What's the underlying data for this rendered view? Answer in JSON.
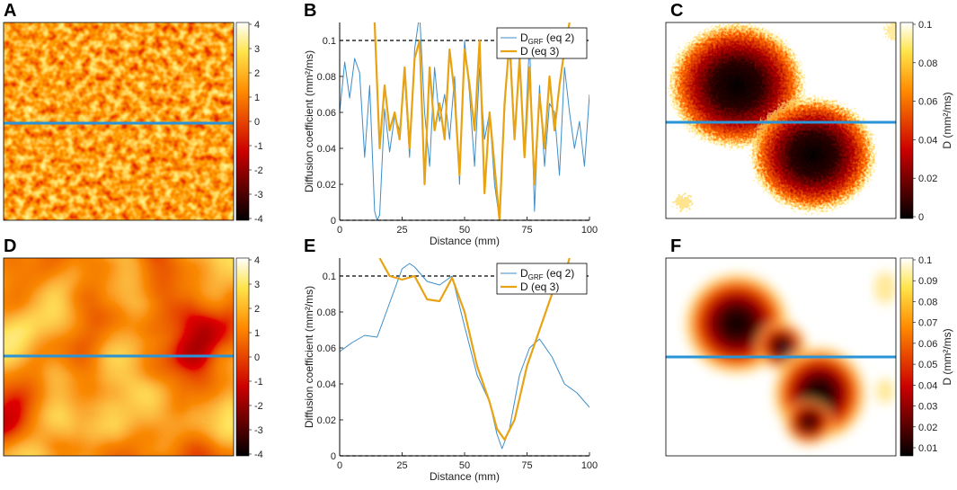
{
  "colors": {
    "blue_line": "#2a94d6",
    "curve_grf": "#3d8ec9",
    "curve_d": "#e8a314",
    "axis": "#000000"
  },
  "panels": {
    "A": {
      "letter": "A",
      "colorbar_ticks": [
        "4",
        "3",
        "2",
        "1",
        "0",
        "-1",
        "-2",
        "-3",
        "-4"
      ]
    },
    "C": {
      "letter": "C",
      "colorbar_ticks": [
        "0.1",
        "0.08",
        "0.06",
        "0.04",
        "0.02",
        "0"
      ],
      "colorbar_label": "D (mm²/ms)"
    },
    "D": {
      "letter": "D",
      "colorbar_ticks": [
        "4",
        "3",
        "2",
        "1",
        "0",
        "-1",
        "-2",
        "-3",
        "-4"
      ]
    },
    "F": {
      "letter": "F",
      "colorbar_ticks": [
        "0.1",
        "0.09",
        "0.08",
        "0.07",
        "0.06",
        "0.05",
        "0.04",
        "0.03",
        "0.02",
        "0.01"
      ],
      "colorbar_label": "D (mm²/ms)"
    }
  },
  "chart_data": [
    {
      "panel": "B",
      "type": "line",
      "xlabel": "Distance (mm)",
      "ylabel": "Diffusion coefficient (mm²/ms)",
      "xlim": [
        0,
        100
      ],
      "ylim": [
        0,
        0.11
      ],
      "xticks": [
        "0",
        "25",
        "50",
        "75",
        "100"
      ],
      "yticks": [
        "0",
        "0.02",
        "0.04",
        "0.06",
        "0.08",
        "0.1"
      ],
      "reference_lines": [
        0.1,
        0
      ],
      "legend": {
        "position": "top-right",
        "entries": [
          {
            "main": "D",
            "sub": "GRF",
            "suffix": " (eq 2)"
          },
          {
            "main": "D",
            "sub": "",
            "suffix": " (eq 3)"
          }
        ]
      },
      "series": [
        {
          "name": "D_GRF (eq 2)",
          "x": [
            0,
            2,
            4,
            6,
            8,
            10,
            12,
            14,
            15,
            16,
            18,
            20,
            22,
            24,
            26,
            28,
            30,
            32,
            34,
            36,
            38,
            40,
            42,
            44,
            46,
            48,
            50,
            52,
            54,
            56,
            58,
            60,
            62,
            64,
            66,
            68,
            70,
            72,
            74,
            76,
            78,
            80,
            82,
            84,
            86,
            88,
            90,
            92,
            94,
            96,
            98,
            100
          ],
          "values": [
            0.06,
            0.088,
            0.068,
            0.09,
            0.082,
            0.035,
            0.075,
            0.005,
            0.0,
            0.003,
            0.062,
            0.038,
            0.058,
            0.05,
            0.08,
            0.035,
            0.095,
            0.115,
            0.06,
            0.03,
            0.085,
            0.055,
            0.07,
            0.045,
            0.08,
            0.02,
            0.1,
            0.07,
            0.03,
            0.085,
            0.045,
            0.06,
            0.02,
            0.0,
            0.06,
            0.105,
            0.05,
            0.085,
            0.04,
            0.1,
            0.005,
            0.075,
            0.03,
            0.065,
            0.06,
            0.025,
            0.085,
            0.06,
            0.04,
            0.055,
            0.03,
            0.07
          ]
        },
        {
          "name": "D (eq 3)",
          "x": [
            14,
            16,
            18,
            20,
            22,
            24,
            26,
            28,
            30,
            32,
            34,
            36,
            38,
            40,
            42,
            44,
            46,
            48,
            50,
            52,
            54,
            56,
            58,
            60,
            62,
            64,
            66,
            68,
            70,
            72,
            74,
            76,
            78,
            80,
            82,
            84,
            86,
            88,
            90,
            92
          ],
          "values": [
            0.11,
            0.04,
            0.075,
            0.05,
            0.06,
            0.045,
            0.085,
            0.04,
            0.09,
            0.1,
            0.02,
            0.085,
            0.05,
            0.065,
            0.045,
            0.095,
            0.07,
            0.025,
            0.095,
            0.075,
            0.05,
            0.1,
            0.015,
            0.06,
            0.03,
            0.0,
            0.065,
            0.1,
            0.045,
            0.09,
            0.035,
            0.085,
            0.02,
            0.07,
            0.04,
            0.08,
            0.05,
            0.075,
            0.095,
            0.11
          ]
        }
      ]
    },
    {
      "panel": "E",
      "type": "line",
      "xlabel": "Distance (mm)",
      "ylabel": "Diffusion coefficient (mm²/ms)",
      "xlim": [
        0,
        100
      ],
      "ylim": [
        0,
        0.11
      ],
      "xticks": [
        "0",
        "25",
        "50",
        "75",
        "100"
      ],
      "yticks": [
        "0",
        "0.02",
        "0.04",
        "0.06",
        "0.08",
        "0.1"
      ],
      "reference_lines": [
        0.1,
        0
      ],
      "legend": {
        "position": "top-right",
        "entries": [
          {
            "main": "D",
            "sub": "GRF",
            "suffix": " (eq 2)"
          },
          {
            "main": "D",
            "sub": "",
            "suffix": " (eq 3)"
          }
        ]
      },
      "series": [
        {
          "name": "D_GRF (eq 2)",
          "x": [
            0,
            5,
            10,
            15,
            20,
            25,
            28,
            30,
            35,
            40,
            45,
            50,
            55,
            60,
            63,
            65,
            68,
            72,
            76,
            80,
            85,
            90,
            95,
            100
          ],
          "values": [
            0.058,
            0.063,
            0.067,
            0.066,
            0.085,
            0.104,
            0.107,
            0.105,
            0.097,
            0.095,
            0.1,
            0.072,
            0.045,
            0.03,
            0.012,
            0.004,
            0.015,
            0.045,
            0.06,
            0.065,
            0.055,
            0.04,
            0.035,
            0.027
          ]
        },
        {
          "name": "D (eq 3)",
          "x": [
            16,
            20,
            25,
            30,
            35,
            40,
            45,
            50,
            55,
            60,
            63,
            66,
            70,
            75,
            80,
            85,
            90,
            92
          ],
          "values": [
            0.11,
            0.1,
            0.098,
            0.1,
            0.087,
            0.086,
            0.099,
            0.08,
            0.05,
            0.03,
            0.015,
            0.009,
            0.02,
            0.05,
            0.07,
            0.09,
            0.1,
            0.11
          ]
        }
      ]
    }
  ]
}
